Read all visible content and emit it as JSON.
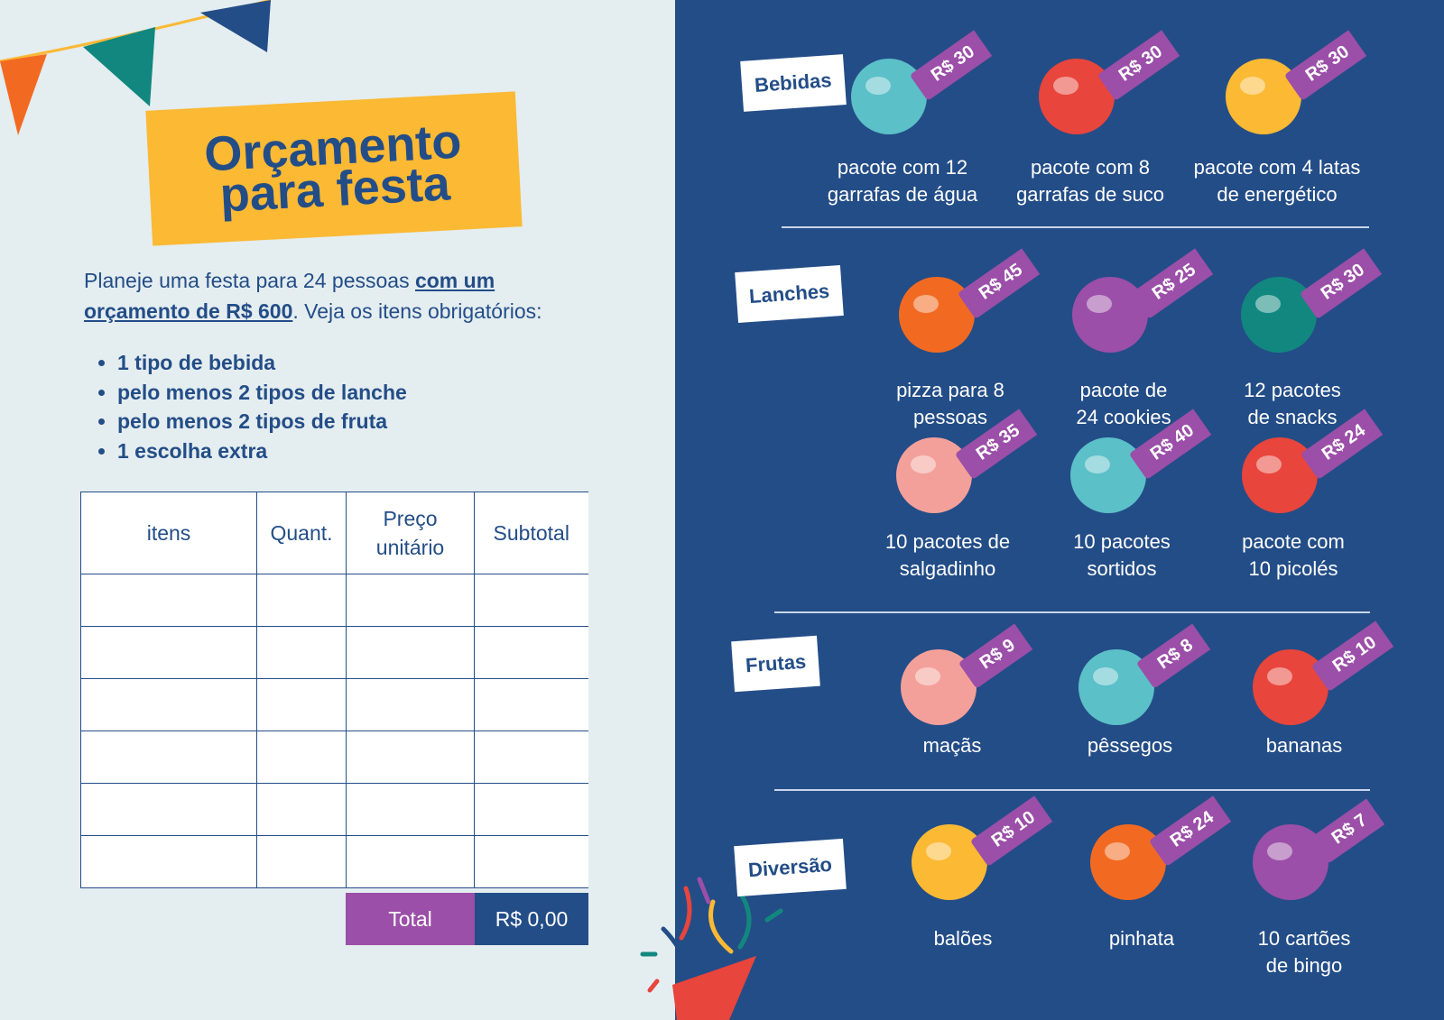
{
  "title": [
    "Orçamento",
    "para festa"
  ],
  "intro": [
    [
      {
        "text": "Planeje uma festa para 24 pessoas "
      },
      {
        "text": "com um",
        "link": true
      }
    ],
    [
      {
        "text": "orçamento de R$ 600",
        "link": true
      },
      {
        "text": ". Veja os itens obrigatórios:"
      }
    ]
  ],
  "requirements": [
    "1 tipo de bebida",
    "pelo menos 2 tipos de lanche",
    "pelo menos 2 tipos de fruta",
    "1 escolha extra"
  ],
  "table": {
    "headers": [
      "itens",
      "Quant.",
      [
        "Preço",
        "unitário"
      ],
      "Subtotal"
    ],
    "total_label": "Total",
    "total_value": "R$ 0,00"
  },
  "sections": [
    {
      "name": "Bebidas",
      "items": [
        {
          "price": "R$ 30",
          "label": [
            "pacote com 12",
            "garrafas de água"
          ]
        },
        {
          "price": "R$ 30",
          "label": [
            "pacote com 8",
            "garrafas de suco"
          ]
        },
        {
          "price": "R$ 30",
          "label": [
            "pacote com 4 latas",
            "de energético"
          ]
        }
      ]
    },
    {
      "name": "Lanches",
      "items": [
        {
          "price": "R$ 45",
          "label": [
            "pizza para 8",
            "pessoas"
          ]
        },
        {
          "price": "R$ 25",
          "label": [
            "pacote de",
            "24 cookies"
          ]
        },
        {
          "price": "R$ 30",
          "label": [
            "12 pacotes",
            "de snacks"
          ]
        },
        {
          "price": "R$ 35",
          "label": [
            "10 pacotes de",
            "salgadinho"
          ]
        },
        {
          "price": "R$ 40",
          "label": [
            "10 pacotes",
            "sortidos"
          ]
        },
        {
          "price": "R$ 24",
          "label": [
            "pacote com",
            "10 picolés"
          ]
        }
      ]
    },
    {
      "name": "Frutas",
      "items": [
        {
          "price": "R$ 9",
          "label": [
            "maçãs"
          ]
        },
        {
          "price": "R$ 8",
          "label": [
            "pêssegos"
          ]
        },
        {
          "price": "R$ 10",
          "label": [
            "bananas"
          ]
        }
      ]
    },
    {
      "name": "Diversão",
      "items": [
        {
          "price": "R$ 10",
          "label": [
            "balões"
          ]
        },
        {
          "price": "R$ 24",
          "label": [
            "pinhata"
          ]
        },
        {
          "price": "R$ 7",
          "label": [
            "10 cartões",
            "de bingo"
          ]
        }
      ]
    }
  ]
}
